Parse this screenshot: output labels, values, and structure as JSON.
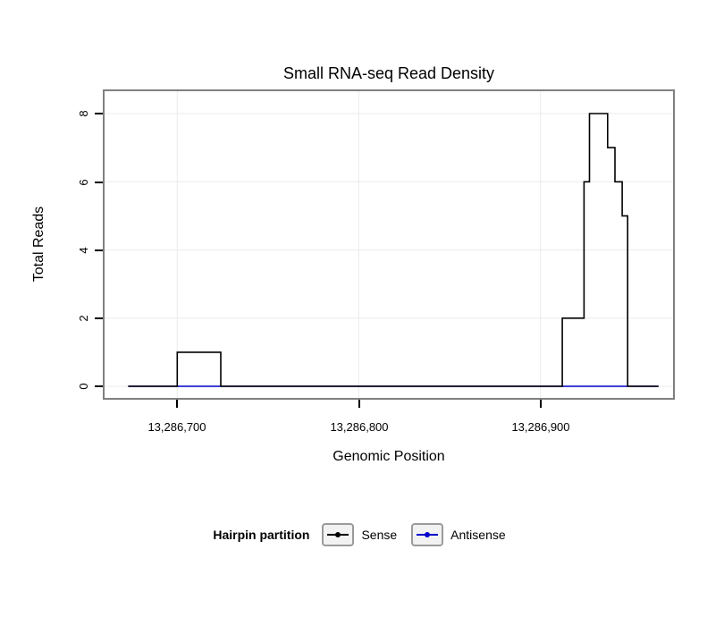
{
  "title": "Small RNA-seq Read Density",
  "axes": {
    "x_label": "Genomic Position",
    "y_label": "Total Reads",
    "x_ticks": [
      "13,286,700",
      "13,286,800",
      "13,286,900"
    ],
    "y_ticks": [
      "0",
      "2",
      "4",
      "6",
      "8"
    ]
  },
  "legend": {
    "title": "Hairpin partition",
    "items": [
      {
        "label": "Sense",
        "color": "#000000"
      },
      {
        "label": "Antisense",
        "color": "#0000CC"
      }
    ]
  },
  "colors": {
    "sense": "#000000",
    "antisense": "#0000CC",
    "panel_border": "#7f7f7f",
    "grid": "#ebebeb"
  },
  "chart_data": {
    "type": "line",
    "subtype": "step",
    "title": "Small RNA-seq Read Density",
    "xlabel": "Genomic Position",
    "ylabel": "Total Reads",
    "xlim": [
      13286660,
      13286973
    ],
    "ylim": [
      0,
      8
    ],
    "x_tick_values": [
      13286700,
      13286800,
      13286900
    ],
    "y_tick_values": [
      0,
      2,
      4,
      6,
      8
    ],
    "grid": true,
    "legend_title": "Hairpin partition",
    "legend_position": "bottom",
    "series": [
      {
        "name": "Sense",
        "color": "#000000",
        "segments": [
          [
            13286673,
            13286700,
            0
          ],
          [
            13286700,
            13286724,
            1
          ],
          [
            13286724,
            13286912,
            0
          ],
          [
            13286912,
            13286924,
            2
          ],
          [
            13286924,
            13286927,
            6
          ],
          [
            13286927,
            13286937,
            8
          ],
          [
            13286937,
            13286941,
            7
          ],
          [
            13286941,
            13286945,
            6
          ],
          [
            13286945,
            13286948,
            5
          ],
          [
            13286948,
            13286965,
            0
          ]
        ]
      },
      {
        "name": "Antisense",
        "color": "#0000CC",
        "segments": [
          [
            13286673,
            13286965,
            0
          ]
        ]
      }
    ]
  }
}
